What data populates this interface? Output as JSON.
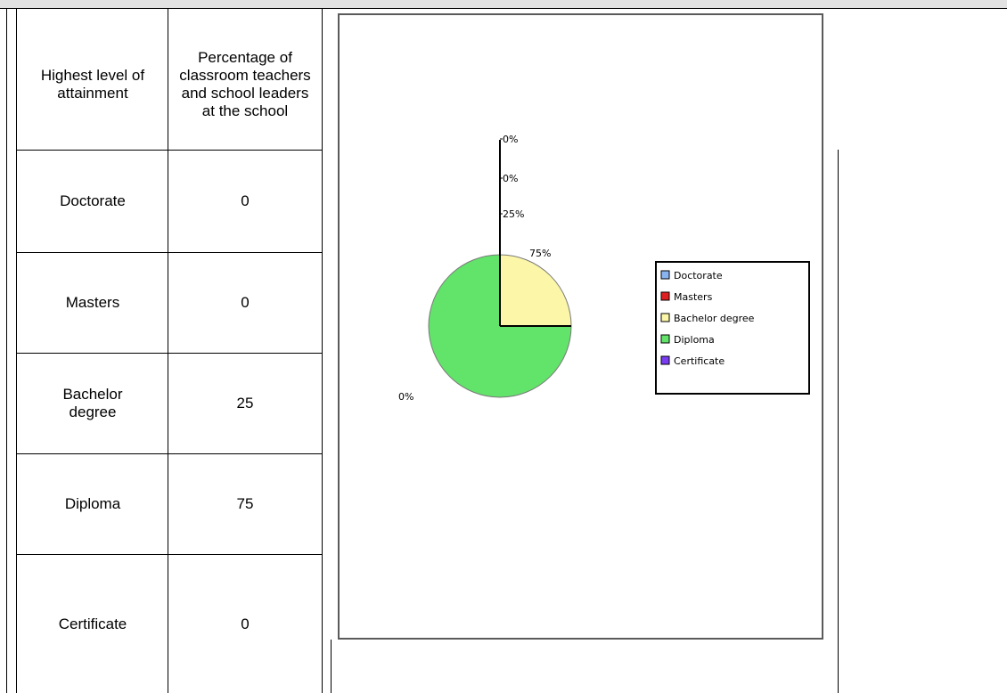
{
  "table": {
    "header": {
      "col1": "Highest level of attainment",
      "col2": "Percentage of classroom teachers and school leaders at the school"
    },
    "rows": [
      {
        "level": "Doctorate",
        "value": "0"
      },
      {
        "level": "Masters",
        "value": "0"
      },
      {
        "level": "Bachelor degree",
        "value": "25"
      },
      {
        "level": "Diploma",
        "value": "75"
      },
      {
        "level": "Certificate",
        "value": "0"
      }
    ]
  },
  "chart_data": {
    "type": "pie",
    "categories": [
      "Doctorate",
      "Masters",
      "Bachelor degree",
      "Diploma",
      "Certificate"
    ],
    "values": [
      0,
      0,
      25,
      75,
      0
    ],
    "slice_labels": [
      "0%",
      "0%",
      "25%",
      "75%",
      "0%"
    ],
    "legend": [
      "Doctorate",
      "Masters",
      "Bachelor degree",
      "Diploma",
      "Certificate"
    ],
    "legend_position": "right",
    "colors": [
      "#8ab4f0",
      "#e02020",
      "#fbf6a8",
      "#62e36a",
      "#7a3cf2"
    ],
    "title": "",
    "xlabel": "",
    "ylabel": ""
  }
}
